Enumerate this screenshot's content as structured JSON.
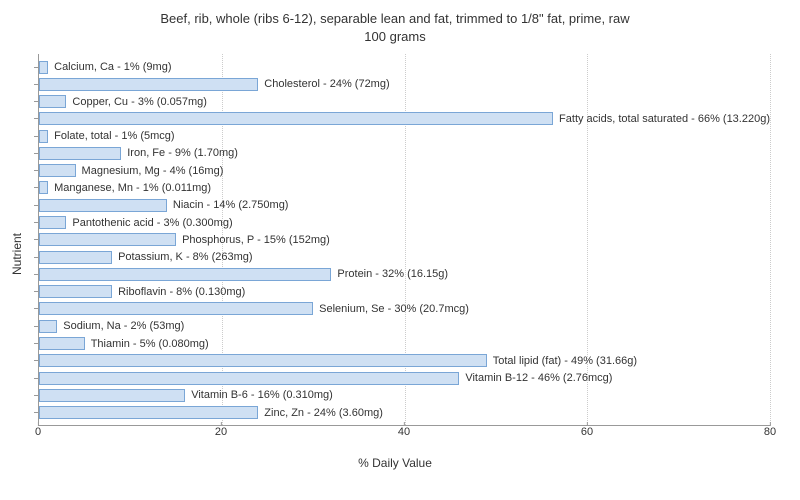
{
  "chart": {
    "type": "bar-horizontal",
    "title_line1": "Beef, rib, whole (ribs 6-12), separable lean and fat, trimmed to 1/8\" fat, prime, raw",
    "title_line2": "100 grams",
    "title_fontsize": 13,
    "y_axis_label": "Nutrient",
    "x_axis_label": "% Daily Value",
    "label_fontsize": 12,
    "bar_label_fontsize": 11,
    "xlim": [
      0,
      80
    ],
    "xticks": [
      0,
      20,
      40,
      60,
      80
    ],
    "bar_fill": "#cfe0f3",
    "bar_border": "#7aa6d6",
    "grid_color": "#cccccc",
    "axis_color": "#999999",
    "background_color": "#ffffff",
    "text_color": "#333333",
    "bars": [
      {
        "label": "Calcium, Ca - 1% (9mg)",
        "value": 1
      },
      {
        "label": "Cholesterol - 24% (72mg)",
        "value": 24
      },
      {
        "label": "Copper, Cu - 3% (0.057mg)",
        "value": 3
      },
      {
        "label": "Fatty acids, total saturated - 66% (13.220g)",
        "value": 66
      },
      {
        "label": "Folate, total - 1% (5mcg)",
        "value": 1
      },
      {
        "label": "Iron, Fe - 9% (1.70mg)",
        "value": 9
      },
      {
        "label": "Magnesium, Mg - 4% (16mg)",
        "value": 4
      },
      {
        "label": "Manganese, Mn - 1% (0.011mg)",
        "value": 1
      },
      {
        "label": "Niacin - 14% (2.750mg)",
        "value": 14
      },
      {
        "label": "Pantothenic acid - 3% (0.300mg)",
        "value": 3
      },
      {
        "label": "Phosphorus, P - 15% (152mg)",
        "value": 15
      },
      {
        "label": "Potassium, K - 8% (263mg)",
        "value": 8
      },
      {
        "label": "Protein - 32% (16.15g)",
        "value": 32
      },
      {
        "label": "Riboflavin - 8% (0.130mg)",
        "value": 8
      },
      {
        "label": "Selenium, Se - 30% (20.7mcg)",
        "value": 30
      },
      {
        "label": "Sodium, Na - 2% (53mg)",
        "value": 2
      },
      {
        "label": "Thiamin - 5% (0.080mg)",
        "value": 5
      },
      {
        "label": "Total lipid (fat) - 49% (31.66g)",
        "value": 49
      },
      {
        "label": "Vitamin B-12 - 46% (2.76mcg)",
        "value": 46
      },
      {
        "label": "Vitamin B-6 - 16% (0.310mg)",
        "value": 16
      },
      {
        "label": "Zinc, Zn - 24% (3.60mg)",
        "value": 24
      }
    ]
  }
}
